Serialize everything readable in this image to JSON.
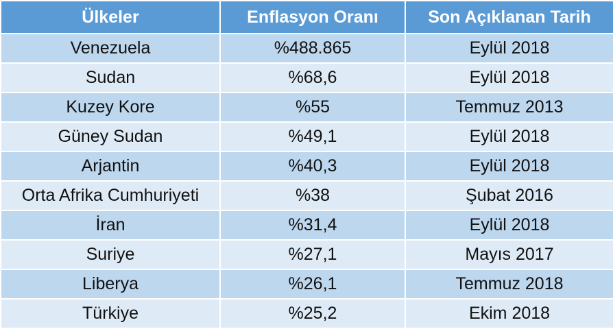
{
  "table": {
    "header": [
      "Ülkeler",
      "Enflasyon Oranı",
      "Son Açıklanan Tarih"
    ],
    "rows": [
      [
        "Venezuela",
        "%488.865",
        "Eylül 2018"
      ],
      [
        "Sudan",
        "%68,6",
        "Eylül 2018"
      ],
      [
        "Kuzey Kore",
        "%55",
        "Temmuz 2013"
      ],
      [
        "Güney Sudan",
        "%49,1",
        "Eylül 2018"
      ],
      [
        "Arjantin",
        "%40,3",
        "Eylül 2018"
      ],
      [
        "Orta Afrika Cumhuriyeti",
        "%38",
        "Şubat 2016"
      ],
      [
        "İran",
        "%31,4",
        "Eylül 2018"
      ],
      [
        "Suriye",
        "%27,1",
        "Mayıs 2017"
      ],
      [
        "Liberya",
        "%26,1",
        "Temmuz 2018"
      ],
      [
        "Türkiye",
        "%25,2",
        "Ekim 2018"
      ]
    ]
  }
}
